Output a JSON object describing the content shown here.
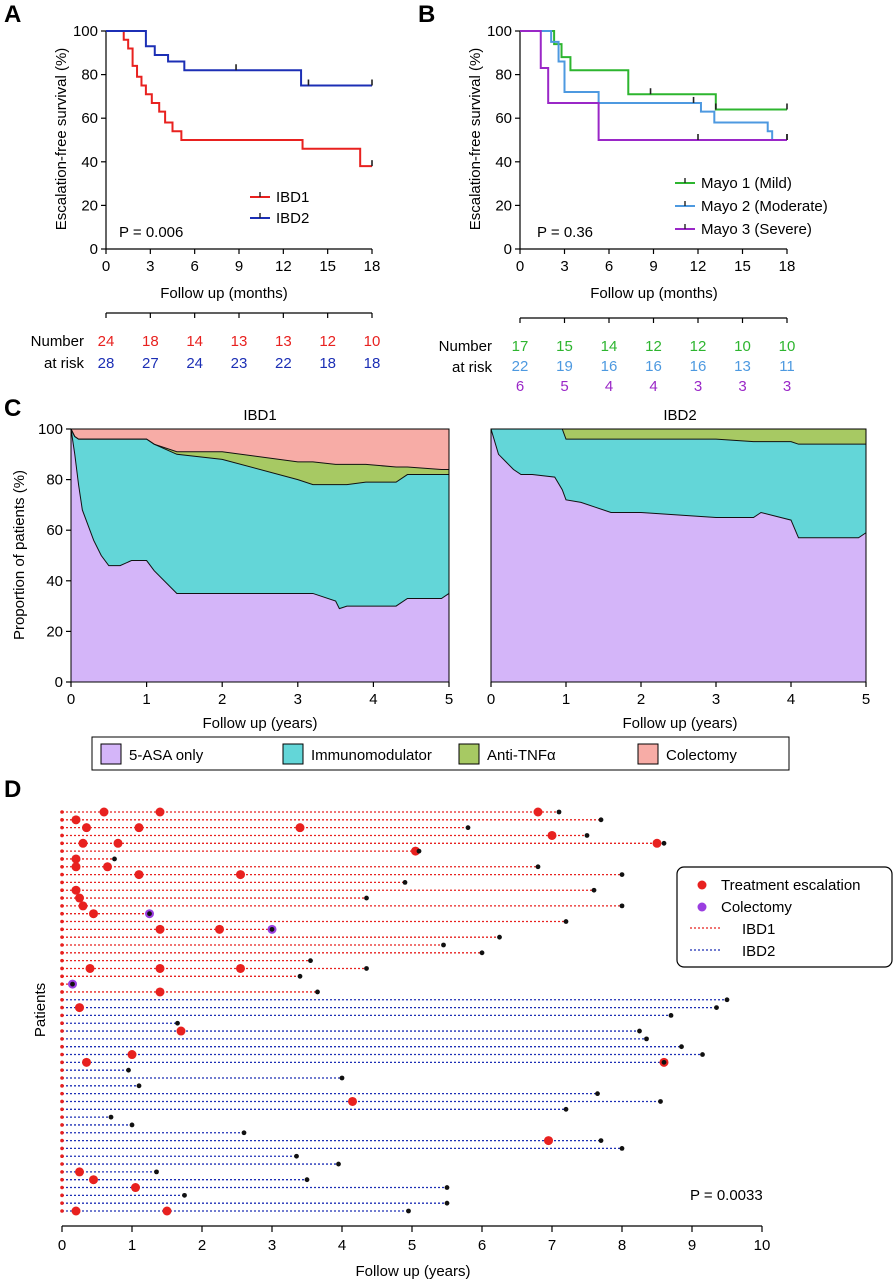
{
  "chart_data": [
    {
      "panel": "A",
      "type": "line",
      "subtype": "kaplan-meier step",
      "xlabel": "Follow up (months)",
      "ylabel": "Escalation-free survival (%)",
      "xlim": [
        0,
        18
      ],
      "ylim": [
        0,
        100
      ],
      "xticks": [
        0,
        3,
        6,
        9,
        12,
        15,
        18
      ],
      "yticks": [
        0,
        20,
        40,
        60,
        80,
        100
      ],
      "annotation": "P = 0.006",
      "legend_position": "bottom-right",
      "series": [
        {
          "name": "IBD1",
          "color": "#e8211f",
          "x": [
            0,
            1.2,
            1.5,
            1.8,
            2.1,
            2.4,
            2.7,
            3.1,
            3.6,
            4.0,
            4.5,
            5.1,
            7.1,
            13.3,
            17.2,
            18
          ],
          "y": [
            100,
            96,
            92,
            84,
            79,
            75,
            71,
            67,
            63,
            58,
            54,
            50,
            50,
            46,
            38,
            38
          ],
          "censored_x": [
            18
          ]
        },
        {
          "name": "IBD2",
          "color": "#1c2fb5",
          "x": [
            0,
            2.7,
            3.3,
            4.2,
            5.3,
            12.3,
            13.2,
            18
          ],
          "y": [
            100,
            93,
            89,
            86,
            82,
            82,
            75,
            75
          ],
          "censored_x": [
            8.8,
            13.7,
            18
          ]
        }
      ],
      "risk_table": {
        "label": [
          "Number",
          "at risk"
        ],
        "x": [
          0,
          3,
          6,
          9,
          12,
          15,
          18
        ],
        "rows": [
          {
            "name": "IBD1",
            "color": "#e8211f",
            "values": [
              "24",
              "18",
              "14",
              "13",
              "13",
              "12",
              "10"
            ]
          },
          {
            "name": "IBD2",
            "color": "#1c2fb5",
            "values": [
              "28",
              "27",
              "24",
              "23",
              "22",
              "18",
              "18"
            ]
          }
        ]
      }
    },
    {
      "panel": "B",
      "type": "line",
      "subtype": "kaplan-meier step",
      "xlabel": "Follow up (months)",
      "ylabel": "Escalation-free survival (%)",
      "xlim": [
        0,
        18
      ],
      "ylim": [
        0,
        100
      ],
      "xticks": [
        0,
        3,
        6,
        9,
        12,
        15,
        18
      ],
      "yticks": [
        0,
        20,
        40,
        60,
        80,
        100
      ],
      "annotation": "P = 0.36",
      "legend_position": "bottom-right",
      "series": [
        {
          "name": "Mayo 1 (Mild)",
          "color": "#2db52f",
          "x": [
            0,
            2.3,
            2.8,
            3.4,
            4.1,
            7.3,
            13.2,
            18
          ],
          "y": [
            100,
            94,
            88,
            82,
            82,
            71,
            64,
            64
          ],
          "censored_x": [
            8.8,
            13.2,
            18
          ]
        },
        {
          "name": "Mayo 2 (Moderate)",
          "color": "#4d99e0",
          "x": [
            0,
            2.1,
            2.6,
            3.0,
            5.3,
            12.2,
            13.1,
            16.7,
            17.0,
            18
          ],
          "y": [
            100,
            95,
            86,
            72,
            67,
            63,
            58,
            54,
            50,
            50
          ],
          "censored_x": [
            11.7,
            18
          ]
        },
        {
          "name": "Mayo 3 (Severe)",
          "color": "#9a27c7",
          "x": [
            0,
            1.4,
            1.9,
            5.3,
            18
          ],
          "y": [
            100,
            83,
            67,
            50,
            50
          ],
          "censored_x": [
            12,
            18
          ]
        }
      ],
      "risk_table": {
        "label": [
          "Number",
          "at risk"
        ],
        "x": [
          0,
          3,
          6,
          9,
          12,
          15,
          18
        ],
        "rows": [
          {
            "name": "Mayo 1 (Mild)",
            "color": "#2db52f",
            "values": [
              "17",
              "15",
              "14",
              "12",
              "12",
              "10",
              "10"
            ]
          },
          {
            "name": "Mayo 2 (Moderate)",
            "color": "#4d99e0",
            "values": [
              "22",
              "19",
              "16",
              "16",
              "16",
              "13",
              "11"
            ]
          },
          {
            "name": "Mayo 3 (Severe)",
            "color": "#9a27c7",
            "values": [
              "6",
              "5",
              "4",
              "4",
              "3",
              "3",
              "3"
            ]
          }
        ]
      }
    },
    {
      "panel": "C",
      "type": "area",
      "subtype": "stacked proportion",
      "ylabel": "Proportion of patients (%)",
      "ylim": [
        0,
        100
      ],
      "yticks": [
        0,
        20,
        40,
        60,
        80,
        100
      ],
      "xticks": [
        0,
        1,
        2,
        3,
        4,
        5
      ],
      "legend": [
        {
          "name": "5-ASA only",
          "color": "#d4b5f9"
        },
        {
          "name": "Immunomodulator",
          "color": "#63d6d8"
        },
        {
          "name": "Anti-TNFα",
          "color": "#a7c963"
        },
        {
          "name": "Colectomy",
          "color": "#f7aca6"
        }
      ],
      "legend_position": "bottom",
      "panels": [
        {
          "title": "IBD1",
          "xlabel": "Follow up (years)",
          "xlim": [
            0,
            5
          ],
          "x": [
            0,
            0.05,
            0.1,
            0.15,
            0.2,
            0.3,
            0.4,
            0.5,
            0.65,
            0.8,
            1.0,
            1.1,
            1.4,
            2.0,
            3.0,
            3.2,
            3.5,
            3.55,
            3.65,
            3.9,
            4.3,
            4.45,
            4.9,
            5.0
          ],
          "asa_only": [
            100,
            90,
            78,
            68,
            64,
            56,
            50,
            46,
            46,
            48,
            48,
            44,
            35,
            35,
            35,
            35,
            32,
            29,
            30,
            30,
            30,
            33,
            33,
            35
          ],
          "immunomodulator_top": [
            100,
            97,
            96,
            96,
            96,
            96,
            96,
            96,
            96,
            96,
            96,
            94,
            90,
            88,
            80,
            78,
            78,
            78,
            78,
            79,
            79,
            82,
            82,
            82
          ],
          "anti_tnf_top": [
            100,
            97,
            96,
            96,
            96,
            96,
            96,
            96,
            96,
            96,
            96,
            94,
            91,
            91,
            87,
            87,
            86,
            86,
            86,
            86,
            85,
            85,
            84,
            84
          ],
          "colectomy_top": [
            100,
            100,
            100,
            100,
            100,
            100,
            100,
            100,
            100,
            100,
            100,
            100,
            100,
            100,
            100,
            100,
            100,
            100,
            100,
            100,
            100,
            100,
            100,
            100
          ]
        },
        {
          "title": "IBD2",
          "xlabel": "Follow up (years)",
          "xlim": [
            0,
            5
          ],
          "x": [
            0,
            0.1,
            0.2,
            0.3,
            0.4,
            0.55,
            0.85,
            0.95,
            1.0,
            1.2,
            1.4,
            1.6,
            2.0,
            2.5,
            3.0,
            3.5,
            3.6,
            4.0,
            4.1,
            4.9,
            5.0
          ],
          "asa_only": [
            100,
            90,
            87,
            84,
            82,
            82,
            81,
            76,
            72,
            71,
            69,
            67,
            67,
            66,
            65,
            65,
            67,
            64,
            57,
            57,
            59
          ],
          "immunomodulator_top": [
            100,
            100,
            100,
            100,
            100,
            100,
            100,
            100,
            96,
            96,
            96,
            96,
            96,
            96,
            96,
            95,
            95,
            95,
            94,
            94,
            94
          ],
          "anti_tnf_top": [
            100,
            100,
            100,
            100,
            100,
            100,
            100,
            100,
            100,
            100,
            100,
            100,
            100,
            100,
            100,
            100,
            100,
            100,
            100,
            100,
            100
          ]
        }
      ]
    },
    {
      "panel": "D",
      "type": "scatter",
      "subtype": "swimmer plot",
      "xlabel": "Follow up (years)",
      "ylabel": "Patients",
      "xlim": [
        0,
        10
      ],
      "xticks": [
        0,
        1,
        2,
        3,
        4,
        5,
        6,
        7,
        8,
        9,
        10
      ],
      "annotation": "P = 0.0033",
      "legend_position": "right",
      "legend": [
        {
          "name": "Treatment escalation",
          "kind": "dot",
          "color": "#e8211f"
        },
        {
          "name": "Colectomy",
          "kind": "dot",
          "color": "#9a3ee0"
        },
        {
          "name": "IBD1",
          "kind": "dotted-line",
          "color": "#e8211f"
        },
        {
          "name": "IBD2",
          "kind": "dotted-line",
          "color": "#1c2fb5"
        }
      ],
      "rows": [
        {
          "group": "IBD1",
          "end": 7.1,
          "escalations": [
            0.6,
            1.4,
            6.8
          ],
          "colectomy": []
        },
        {
          "group": "IBD1",
          "end": 7.7,
          "escalations": [
            0.2
          ],
          "colectomy": []
        },
        {
          "group": "IBD1",
          "end": 5.8,
          "escalations": [
            0.35,
            1.1,
            3.4
          ],
          "colectomy": []
        },
        {
          "group": "IBD1",
          "end": 7.5,
          "escalations": [
            7.0
          ],
          "colectomy": []
        },
        {
          "group": "IBD1",
          "end": 8.6,
          "escalations": [
            0.3,
            0.8,
            8.5
          ],
          "colectomy": []
        },
        {
          "group": "IBD1",
          "end": 5.1,
          "escalations": [
            5.05
          ],
          "colectomy": []
        },
        {
          "group": "IBD1",
          "end": 0.75,
          "escalations": [
            0.2
          ],
          "colectomy": []
        },
        {
          "group": "IBD1",
          "end": 6.8,
          "escalations": [
            0.2,
            0.65
          ],
          "colectomy": []
        },
        {
          "group": "IBD1",
          "end": 8.0,
          "escalations": [
            1.1,
            2.55
          ],
          "colectomy": []
        },
        {
          "group": "IBD1",
          "end": 4.9,
          "escalations": [],
          "colectomy": []
        },
        {
          "group": "IBD1",
          "end": 7.6,
          "escalations": [
            0.2
          ],
          "colectomy": []
        },
        {
          "group": "IBD1",
          "end": 4.35,
          "escalations": [
            0.25
          ],
          "colectomy": []
        },
        {
          "group": "IBD1",
          "end": 8.0,
          "escalations": [
            0.3
          ],
          "colectomy": []
        },
        {
          "group": "IBD1",
          "end": 1.25,
          "escalations": [
            0.45
          ],
          "colectomy": [
            1.25
          ]
        },
        {
          "group": "IBD1",
          "end": 7.2,
          "escalations": [],
          "colectomy": []
        },
        {
          "group": "IBD1",
          "end": 3.0,
          "escalations": [
            1.4,
            2.25
          ],
          "colectomy": [
            3.0
          ]
        },
        {
          "group": "IBD1",
          "end": 6.25,
          "escalations": [],
          "colectomy": []
        },
        {
          "group": "IBD1",
          "end": 5.45,
          "escalations": [],
          "colectomy": []
        },
        {
          "group": "IBD1",
          "end": 6.0,
          "escalations": [],
          "colectomy": []
        },
        {
          "group": "IBD1",
          "end": 3.55,
          "escalations": [],
          "colectomy": []
        },
        {
          "group": "IBD1",
          "end": 4.35,
          "escalations": [
            0.4,
            1.4,
            2.55
          ],
          "colectomy": []
        },
        {
          "group": "IBD1",
          "end": 3.4,
          "escalations": [],
          "colectomy": []
        },
        {
          "group": "IBD1",
          "end": 0.15,
          "escalations": [],
          "colectomy": [
            0.15
          ]
        },
        {
          "group": "IBD1",
          "end": 3.65,
          "escalations": [
            1.4
          ],
          "colectomy": []
        },
        {
          "group": "IBD2",
          "end": 9.5,
          "escalations": [],
          "colectomy": []
        },
        {
          "group": "IBD2",
          "end": 9.35,
          "escalations": [
            0.25
          ],
          "colectomy": []
        },
        {
          "group": "IBD2",
          "end": 8.7,
          "escalations": [],
          "colectomy": []
        },
        {
          "group": "IBD2",
          "end": 1.65,
          "escalations": [],
          "colectomy": []
        },
        {
          "group": "IBD2",
          "end": 8.25,
          "escalations": [
            1.7
          ],
          "colectomy": []
        },
        {
          "group": "IBD2",
          "end": 8.35,
          "escalations": [],
          "colectomy": []
        },
        {
          "group": "IBD2",
          "end": 8.85,
          "escalations": [],
          "colectomy": []
        },
        {
          "group": "IBD2",
          "end": 9.15,
          "escalations": [
            1.0
          ],
          "colectomy": []
        },
        {
          "group": "IBD2",
          "end": 8.6,
          "escalations": [
            0.35,
            8.6
          ],
          "colectomy": []
        },
        {
          "group": "IBD2",
          "end": 0.95,
          "escalations": [],
          "colectomy": []
        },
        {
          "group": "IBD2",
          "end": 4.0,
          "escalations": [],
          "colectomy": []
        },
        {
          "group": "IBD2",
          "end": 1.1,
          "escalations": [],
          "colectomy": []
        },
        {
          "group": "IBD2",
          "end": 7.65,
          "escalations": [],
          "colectomy": []
        },
        {
          "group": "IBD2",
          "end": 8.55,
          "escalations": [
            4.15
          ],
          "colectomy": []
        },
        {
          "group": "IBD2",
          "end": 7.2,
          "escalations": [],
          "colectomy": []
        },
        {
          "group": "IBD2",
          "end": 0.7,
          "escalations": [],
          "colectomy": []
        },
        {
          "group": "IBD2",
          "end": 1.0,
          "escalations": [],
          "colectomy": []
        },
        {
          "group": "IBD2",
          "end": 2.6,
          "escalations": [],
          "colectomy": []
        },
        {
          "group": "IBD2",
          "end": 7.7,
          "escalations": [
            6.95
          ],
          "colectomy": []
        },
        {
          "group": "IBD2",
          "end": 8.0,
          "escalations": [],
          "colectomy": []
        },
        {
          "group": "IBD2",
          "end": 3.35,
          "escalations": [],
          "colectomy": []
        },
        {
          "group": "IBD2",
          "end": 3.95,
          "escalations": [],
          "colectomy": []
        },
        {
          "group": "IBD2",
          "end": 1.35,
          "escalations": [
            0.25
          ],
          "colectomy": []
        },
        {
          "group": "IBD2",
          "end": 3.5,
          "escalations": [
            0.45
          ],
          "colectomy": []
        },
        {
          "group": "IBD2",
          "end": 5.5,
          "escalations": [
            1.05
          ],
          "colectomy": []
        },
        {
          "group": "IBD2",
          "end": 1.75,
          "escalations": [],
          "colectomy": []
        },
        {
          "group": "IBD2",
          "end": 5.5,
          "escalations": [],
          "colectomy": []
        },
        {
          "group": "IBD2",
          "end": 4.95,
          "escalations": [
            0.2,
            1.5
          ],
          "colectomy": []
        }
      ]
    }
  ]
}
